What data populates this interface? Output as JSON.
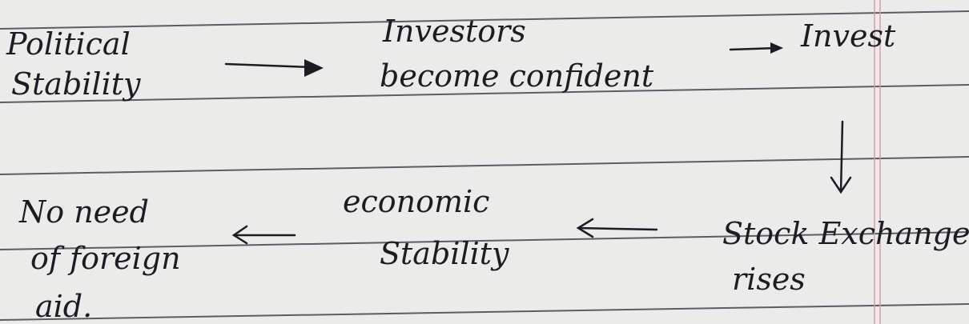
{
  "nodes": [
    {
      "lines": [
        "Political",
        "Stability"
      ]
    },
    {
      "lines": [
        "Investors",
        "become confident"
      ]
    },
    {
      "lines": [
        "Invest"
      ]
    },
    {
      "lines": [
        "Stock Exchange",
        "rises"
      ]
    },
    {
      "lines": [
        "economic",
        "Stability"
      ]
    },
    {
      "lines": [
        "No need",
        "of foreign",
        "aid."
      ]
    }
  ]
}
